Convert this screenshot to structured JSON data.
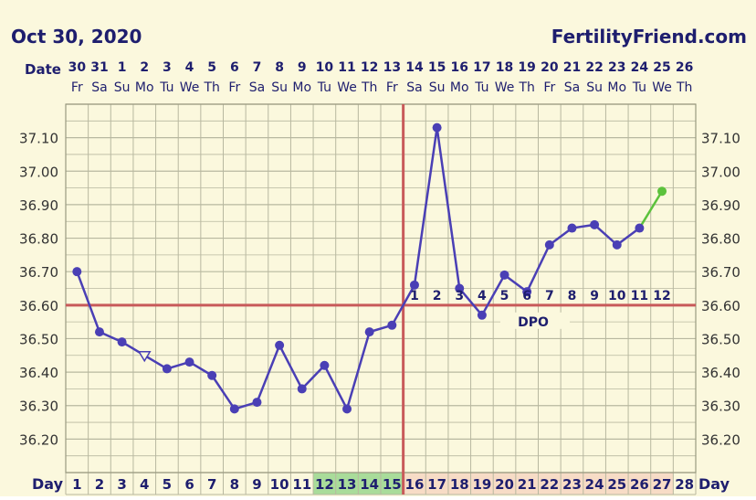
{
  "header": {
    "date": "Oct 30, 2020",
    "site": "FertilityFriend.com",
    "date_label": "Date",
    "day_label": "Day"
  },
  "colors": {
    "background": "#fbf8dd",
    "grid": "#b8b8a0",
    "coverline": "#c85a5a",
    "ovulation_line": "#c85a5a",
    "temp_line": "#4a3fb5",
    "temp_point": "#4a3fb5",
    "projected": "#5cc23c",
    "fertile_highlight": "#a9dc9a",
    "luteal_highlight": "#f7dcc6"
  },
  "chart_data": {
    "type": "line",
    "title": "",
    "ylim": [
      36.1,
      37.2
    ],
    "y_ticks": [
      "36.20",
      "36.30",
      "36.40",
      "36.50",
      "36.60",
      "36.70",
      "36.80",
      "36.90",
      "37.00",
      "37.10"
    ],
    "dates": [
      "30",
      "31",
      "1",
      "2",
      "3",
      "4",
      "5",
      "6",
      "7",
      "8",
      "9",
      "10",
      "11",
      "12",
      "13",
      "14",
      "15",
      "16",
      "17",
      "18",
      "19",
      "20",
      "21",
      "22",
      "23",
      "24",
      "25",
      "26"
    ],
    "weekdays": [
      "Fr",
      "Sa",
      "Su",
      "Mo",
      "Tu",
      "We",
      "Th",
      "Fr",
      "Sa",
      "Su",
      "Mo",
      "Tu",
      "We",
      "Th",
      "Fr",
      "Sa",
      "Su",
      "Mo",
      "Tu",
      "We",
      "Th",
      "Fr",
      "Sa",
      "Su",
      "Mo",
      "Tu",
      "We",
      "Th"
    ],
    "cycle_days": [
      "1",
      "2",
      "3",
      "4",
      "5",
      "6",
      "7",
      "8",
      "9",
      "10",
      "11",
      "12",
      "13",
      "14",
      "15",
      "16",
      "17",
      "18",
      "19",
      "20",
      "21",
      "22",
      "23",
      "24",
      "25",
      "26",
      "27",
      "28"
    ],
    "fertile_days": [
      12,
      13,
      14,
      15
    ],
    "luteal_days": [
      16,
      17,
      18,
      19,
      20,
      21,
      22,
      23,
      24,
      25,
      26,
      27
    ],
    "series": [
      {
        "values": [
          36.7,
          36.52,
          36.49,
          36.45,
          36.41,
          36.43,
          36.39,
          36.29,
          36.31,
          36.48,
          36.35,
          36.42,
          36.29,
          36.52,
          36.54,
          36.66,
          37.13,
          36.65,
          36.57,
          36.69,
          36.64,
          36.78,
          36.83,
          36.84,
          36.78,
          36.83,
          null,
          null
        ],
        "open_markers": [
          4
        ]
      },
      {
        "values": [
          null,
          null,
          null,
          null,
          null,
          null,
          null,
          null,
          null,
          null,
          null,
          null,
          null,
          null,
          null,
          null,
          null,
          null,
          null,
          null,
          null,
          null,
          null,
          null,
          null,
          36.83,
          36.94,
          null
        ],
        "projected": true
      }
    ],
    "coverline": 36.6,
    "ovulation_day": 15,
    "dpo_numbers": [
      "1",
      "2",
      "3",
      "4",
      "5",
      "6",
      "7",
      "8",
      "9",
      "10",
      "11",
      "12"
    ],
    "dpo_label": "DPO"
  }
}
